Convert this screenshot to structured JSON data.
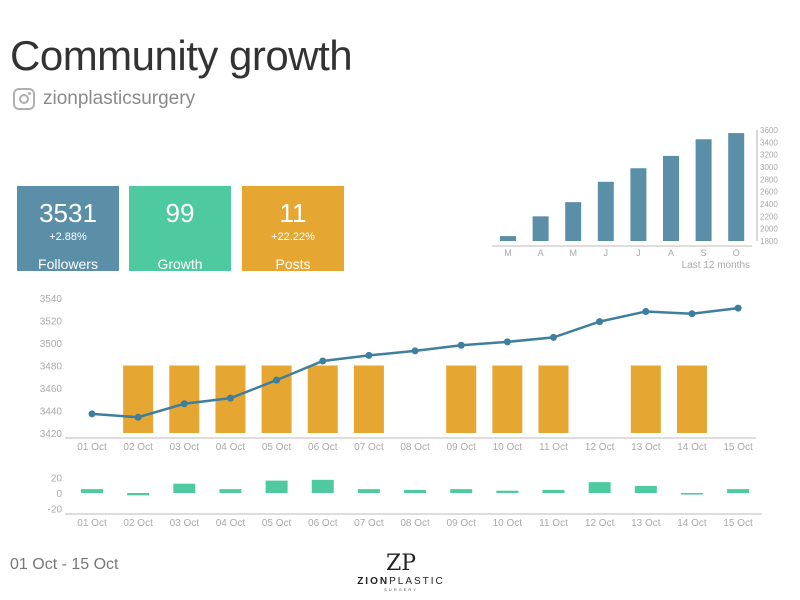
{
  "header": {
    "title": "Community growth",
    "handle": "zionplasticsurgery",
    "handle_icon": "instagram-icon"
  },
  "cards": [
    {
      "value": "3531",
      "delta": "+2.88%",
      "label": "Followers",
      "color": "#5b8fa8"
    },
    {
      "value": "99",
      "delta": "",
      "label": "Growth",
      "color": "#4ec9a0"
    },
    {
      "value": "11",
      "delta": "+22.22%",
      "label": "Posts",
      "color": "#e5a632"
    }
  ],
  "footer": {
    "date_range": "01 Oct  -  15 Oct",
    "logo_mark": "ZP",
    "logo_name_bold": "ZION",
    "logo_name": "PLASTIC",
    "logo_sub": "SURGERY"
  },
  "chart_data": [
    {
      "type": "bar",
      "title": "",
      "caption": "Last 12 months",
      "categories": [
        "M",
        "A",
        "M",
        "J",
        "J",
        "A",
        "S",
        "O"
      ],
      "values": [
        1880,
        2200,
        2430,
        2760,
        2980,
        3180,
        3450,
        3550
      ],
      "ylim": [
        1800,
        3600
      ],
      "yticks": [
        "1800",
        "2000",
        "2200",
        "2400",
        "2600",
        "2800",
        "3000",
        "3200",
        "3400",
        "3600"
      ],
      "color": "#5b8fa8",
      "yaxis": "right"
    },
    {
      "type": "line",
      "title": "",
      "categories": [
        "01 Oct",
        "02 Oct",
        "03 Oct",
        "04 Oct",
        "05 Oct",
        "06 Oct",
        "07 Oct",
        "08 Oct",
        "09 Oct",
        "10 Oct",
        "11 Oct",
        "12 Oct",
        "13 Oct",
        "14 Oct",
        "15 Oct"
      ],
      "series": [
        {
          "name": "Followers",
          "type": "line",
          "color": "#3f7f9e",
          "values": [
            3437,
            3434,
            3446,
            3451,
            3467,
            3484,
            3489,
            3493,
            3498,
            3501,
            3505,
            3519,
            3528,
            3526,
            3531
          ]
        },
        {
          "name": "Posts",
          "type": "bar",
          "color": "#e5a632",
          "values": [
            0,
            1,
            1,
            1,
            1,
            1,
            1,
            0,
            1,
            1,
            1,
            0,
            1,
            1,
            0
          ]
        }
      ],
      "ylim": [
        3420,
        3540
      ],
      "yticks": [
        "3420",
        "3440",
        "3460",
        "3480",
        "3500",
        "3520",
        "3540"
      ]
    },
    {
      "type": "bar",
      "title": "",
      "categories": [
        "01 Oct",
        "02 Oct",
        "03 Oct",
        "04 Oct",
        "05 Oct",
        "06 Oct",
        "07 Oct",
        "08 Oct",
        "09 Oct",
        "10 Oct",
        "11 Oct",
        "12 Oct",
        "13 Oct",
        "14 Oct",
        "15 Oct"
      ],
      "values": [
        5,
        -3,
        12,
        5,
        16,
        17,
        5,
        4,
        5,
        3,
        4,
        14,
        9,
        -2,
        5
      ],
      "ylim": [
        -20,
        20
      ],
      "yticks": [
        "20",
        "0",
        "-20"
      ],
      "color": "#4ec9a0"
    }
  ]
}
